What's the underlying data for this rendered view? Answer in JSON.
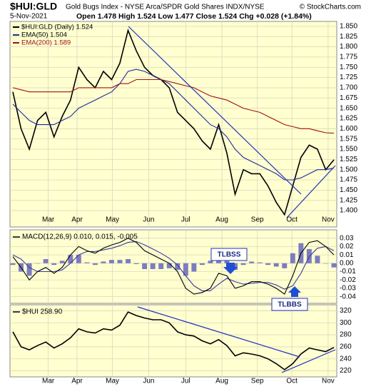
{
  "header": {
    "symbol": "$HUI:GLD",
    "description": "Gold Bugs Index - NYSE Arca/SPDR Gold Shares INDX/NYSE",
    "source": "© StockCharts.com",
    "date": "5-Nov-2021",
    "quote": "Open 1.478  High 1.524  Low 1.477  Close 1.524  Chg +0.028 (+1.84%)"
  },
  "chart_data": [
    {
      "type": "line",
      "ylim": [
        1.36,
        1.862
      ],
      "xlim": [
        0,
        39
      ],
      "yticks": [
        {
          "value": 1.4,
          "label": "1.400"
        },
        {
          "value": 1.425,
          "label": "1.425"
        },
        {
          "value": 1.45,
          "label": "1.450"
        },
        {
          "value": 1.475,
          "label": "1.475"
        },
        {
          "value": 1.5,
          "label": "1.500"
        },
        {
          "value": 1.525,
          "label": "1.525"
        },
        {
          "value": 1.55,
          "label": "1.550"
        },
        {
          "value": 1.575,
          "label": "1.575"
        },
        {
          "value": 1.6,
          "label": "1.600"
        },
        {
          "value": 1.625,
          "label": "1.625"
        },
        {
          "value": 1.65,
          "label": "1.650"
        },
        {
          "value": 1.675,
          "label": "1.675"
        },
        {
          "value": 1.7,
          "label": "1.700"
        },
        {
          "value": 1.725,
          "label": "1.725"
        },
        {
          "value": 1.75,
          "label": "1.750"
        },
        {
          "value": 1.775,
          "label": "1.775"
        },
        {
          "value": 1.8,
          "label": "1.800"
        },
        {
          "value": 1.825,
          "label": "1.825"
        },
        {
          "value": 1.85,
          "label": "1.850"
        }
      ],
      "xticks": [
        {
          "value": 4.3,
          "label": "Mar"
        },
        {
          "value": 7.8,
          "label": "Apr"
        },
        {
          "value": 12.1,
          "label": "May"
        },
        {
          "value": 16.5,
          "label": "Jun"
        },
        {
          "value": 21,
          "label": "Jul"
        },
        {
          "value": 25.4,
          "label": "Aug"
        },
        {
          "value": 29.7,
          "label": "Sep"
        },
        {
          "value": 33.9,
          "label": "Oct"
        },
        {
          "value": 38.3,
          "label": "Nov"
        }
      ],
      "grid": true,
      "legend": "top-left",
      "series": [
        {
          "name": "$HUI:GLD (Daily) 1.524",
          "color": "#000000",
          "values": [
            1.69,
            1.6,
            1.55,
            1.62,
            1.64,
            1.58,
            1.63,
            1.67,
            1.75,
            1.72,
            1.7,
            1.74,
            1.72,
            1.76,
            1.84,
            1.79,
            1.75,
            1.73,
            1.72,
            1.7,
            1.64,
            1.62,
            1.6,
            1.57,
            1.55,
            1.61,
            1.54,
            1.44,
            1.5,
            1.49,
            1.49,
            1.46,
            1.42,
            1.39,
            1.46,
            1.53,
            1.56,
            1.55,
            1.5,
            1.524
          ]
        },
        {
          "name": "EMA(50) 1.504",
          "color": "#1f2a9a",
          "values": [
            1.66,
            1.64,
            1.62,
            1.61,
            1.61,
            1.61,
            1.62,
            1.63,
            1.65,
            1.66,
            1.67,
            1.68,
            1.69,
            1.71,
            1.74,
            1.745,
            1.74,
            1.73,
            1.72,
            1.71,
            1.69,
            1.67,
            1.65,
            1.63,
            1.61,
            1.6,
            1.58,
            1.55,
            1.53,
            1.52,
            1.51,
            1.5,
            1.49,
            1.475,
            1.475,
            1.48,
            1.49,
            1.5,
            1.5,
            1.504
          ]
        },
        {
          "name": "EMA(200) 1.589",
          "color": "#a01010",
          "values": [
            1.7,
            1.695,
            1.69,
            1.69,
            1.69,
            1.69,
            1.69,
            1.69,
            1.7,
            1.7,
            1.7,
            1.7,
            1.7,
            1.71,
            1.71,
            1.72,
            1.72,
            1.72,
            1.72,
            1.715,
            1.71,
            1.705,
            1.7,
            1.69,
            1.68,
            1.675,
            1.67,
            1.66,
            1.65,
            1.645,
            1.64,
            1.63,
            1.62,
            1.61,
            1.605,
            1.6,
            1.6,
            1.595,
            1.59,
            1.589
          ]
        }
      ]
    },
    {
      "type": "line",
      "title": "MACD(12,26,9) 0.010, 0.015, -0.005",
      "ylim": [
        -0.048,
        0.04
      ],
      "xlim": [
        0,
        39
      ],
      "yticks": [
        0.03,
        0.02,
        0.01,
        {
          "value": 0,
          "label": "0.00"
        },
        -0.01,
        -0.02,
        -0.03,
        -0.04
      ],
      "grid": true,
      "series": [
        {
          "kind": "bar",
          "color": "#7c7cc0",
          "values": [
            -0.002,
            -0.01,
            -0.015,
            0,
            0.005,
            -0.002,
            0.003,
            0.01,
            0.01,
            0.001,
            -0.002,
            0.002,
            0.004,
            0.004,
            0.005,
            -0.001,
            -0.007,
            -0.007,
            -0.007,
            -0.006,
            -0.008,
            -0.015,
            -0.01,
            -0.002,
            0.003,
            0.013,
            0.003,
            -0.008,
            -0.002,
            0.002,
            0.001,
            -0.002,
            -0.004,
            -0.006,
            0.012,
            0.024,
            0.017,
            0.009,
            0,
            -0.005
          ]
        },
        {
          "kind": "line",
          "color": "#3a3aa0",
          "values": [
            0.01,
            0.005,
            -0.005,
            -0.01,
            -0.01,
            -0.01,
            -0.008,
            0,
            0.01,
            0.014,
            0.014,
            0.016,
            0.018,
            0.021,
            0.025,
            0.026,
            0.022,
            0.017,
            0.012,
            0.006,
            -0.002,
            -0.015,
            -0.027,
            -0.033,
            -0.033,
            -0.025,
            -0.018,
            -0.022,
            -0.025,
            -0.024,
            -0.023,
            -0.023,
            -0.026,
            -0.031,
            -0.027,
            -0.012,
            0.008,
            0.018,
            0.02,
            0.015
          ]
        },
        {
          "kind": "line",
          "color": "#000000",
          "values": [
            0.008,
            -0.005,
            -0.02,
            -0.01,
            -0.005,
            -0.012,
            -0.005,
            0.01,
            0.02,
            0.015,
            0.012,
            0.018,
            0.022,
            0.025,
            0.03,
            0.025,
            0.015,
            0.01,
            0.005,
            0,
            -0.01,
            -0.03,
            -0.037,
            -0.035,
            -0.03,
            -0.012,
            -0.015,
            -0.03,
            -0.027,
            -0.022,
            -0.022,
            -0.025,
            -0.03,
            -0.037,
            -0.015,
            0.012,
            0.025,
            0.027,
            0.02,
            0.01
          ]
        }
      ],
      "annotations": [
        "TLBSS",
        "TLBBS"
      ]
    },
    {
      "type": "line",
      "title": "$HUI 258.90",
      "ylim": [
        210,
        330
      ],
      "xlim": [
        0,
        39
      ],
      "yticks": [
        220,
        240,
        260,
        280,
        300,
        320
      ],
      "grid": true,
      "xticks": [
        {
          "value": 4.3,
          "label": "Mar"
        },
        {
          "value": 7.8,
          "label": "Apr"
        },
        {
          "value": 12.1,
          "label": "May"
        },
        {
          "value": 16.5,
          "label": "Jun"
        },
        {
          "value": 21,
          "label": "Jul"
        },
        {
          "value": 25.4,
          "label": "Aug"
        },
        {
          "value": 29.7,
          "label": "Sep"
        },
        {
          "value": 33.9,
          "label": "Oct"
        },
        {
          "value": 38.3,
          "label": "Nov"
        }
      ],
      "series": [
        {
          "kind": "line",
          "color": "#000000",
          "values": [
            285,
            260,
            255,
            262,
            268,
            258,
            265,
            275,
            290,
            285,
            283,
            290,
            288,
            296,
            318,
            312,
            308,
            305,
            305,
            300,
            285,
            280,
            278,
            270,
            265,
            272,
            262,
            245,
            250,
            248,
            245,
            240,
            232,
            222,
            232,
            248,
            258,
            255,
            252,
            258.9
          ]
        }
      ]
    }
  ]
}
